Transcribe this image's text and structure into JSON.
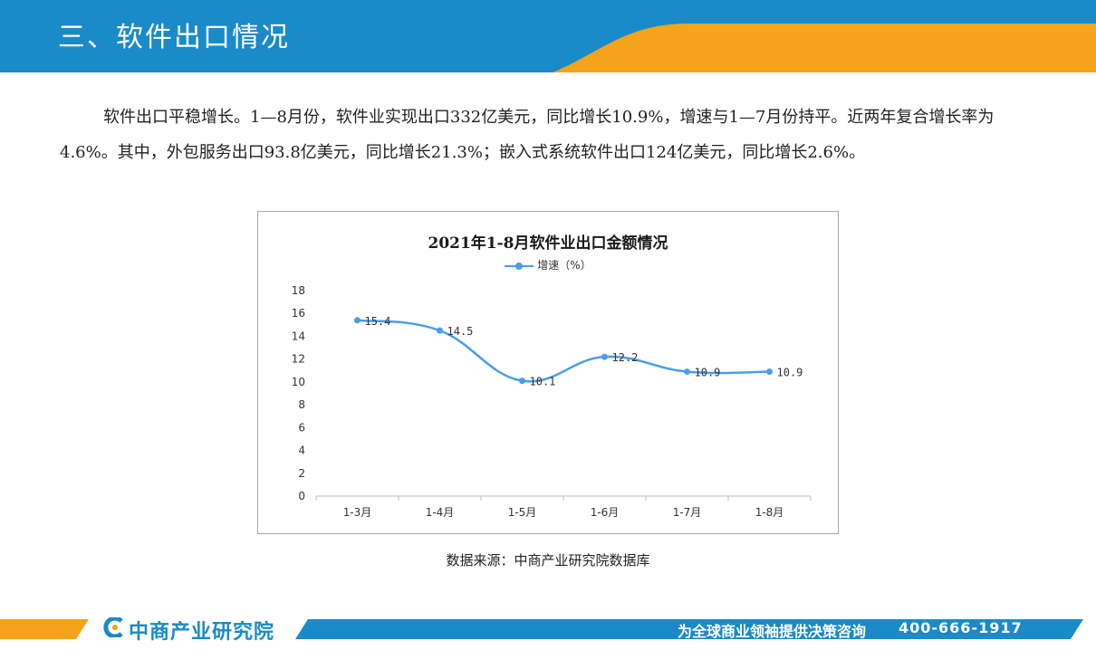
{
  "header": {
    "title": "三、软件出口情况"
  },
  "paragraph": {
    "text": "软件出口平稳增长。1—8月份，软件业实现出口332亿美元，同比增长10.9%，增速与1—7月份持平。近两年复合增长率为4.6%。其中，外包服务出口93.8亿美元，同比增长21.3%；嵌入式系统软件出口124亿美元，同比增长2.6%。"
  },
  "chart_data": {
    "type": "line",
    "title": "2021年1-8月软件业出口金额情况",
    "categories": [
      "1-3月",
      "1-4月",
      "1-5月",
      "1-6月",
      "1-7月",
      "1-8月"
    ],
    "series": [
      {
        "name": "增速（%）",
        "values": [
          15.4,
          14.5,
          10.1,
          12.2,
          10.9,
          10.9
        ]
      }
    ],
    "ylim": [
      0,
      18
    ],
    "yticks": [
      0,
      2,
      4,
      6,
      8,
      10,
      12,
      14,
      16,
      18
    ],
    "grid": false,
    "legend": "top",
    "color": "#4a9de8"
  },
  "source": {
    "text": "数据来源：中商产业研究院数据库"
  },
  "footer": {
    "logo_text": "中商产业研究院",
    "slogan": "为全球商业领袖提供决策咨询",
    "phone": "400-666-1917"
  },
  "colors": {
    "blue": "#1a8ac8",
    "orange": "#f5a31a"
  }
}
